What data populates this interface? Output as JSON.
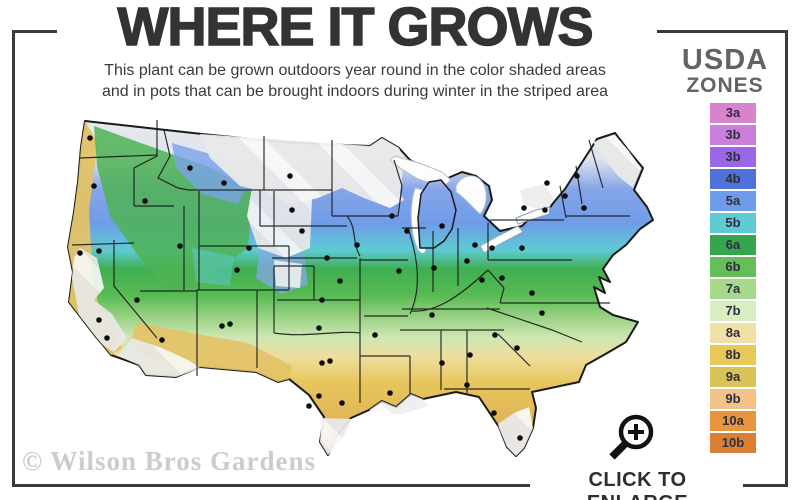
{
  "header": {
    "title": "WHERE IT GROWS",
    "subtitle_line1": "This plant can be grown outdoors year round in the color shaded areas",
    "subtitle_line2": "and in pots that can be brought indoors during winter in the striped area"
  },
  "legend": {
    "title_line1": "USDA",
    "title_line2": "ZONES",
    "zones": [
      {
        "label": "3a",
        "color": "#d983cf"
      },
      {
        "label": "3b",
        "color": "#cb7fdb"
      },
      {
        "label": "3b",
        "color": "#9a67e8"
      },
      {
        "label": "4b",
        "color": "#4e72d9"
      },
      {
        "label": "5a",
        "color": "#6f9ce8"
      },
      {
        "label": "5b",
        "color": "#5ecbd4"
      },
      {
        "label": "6a",
        "color": "#36a64e"
      },
      {
        "label": "6b",
        "color": "#65bf58"
      },
      {
        "label": "7a",
        "color": "#a7d98d"
      },
      {
        "label": "7b",
        "color": "#d9edc3"
      },
      {
        "label": "8a",
        "color": "#f2e1a7"
      },
      {
        "label": "8b",
        "color": "#e7c858"
      },
      {
        "label": "9a",
        "color": "#d9c258"
      },
      {
        "label": "9b",
        "color": "#f2c386"
      },
      {
        "label": "10a",
        "color": "#e8953f"
      },
      {
        "label": "10b",
        "color": "#d98034"
      }
    ]
  },
  "footer": {
    "watermark": "© Wilson Bros Gardens",
    "enlarge_label": "CLICK TO ENLARGE"
  }
}
